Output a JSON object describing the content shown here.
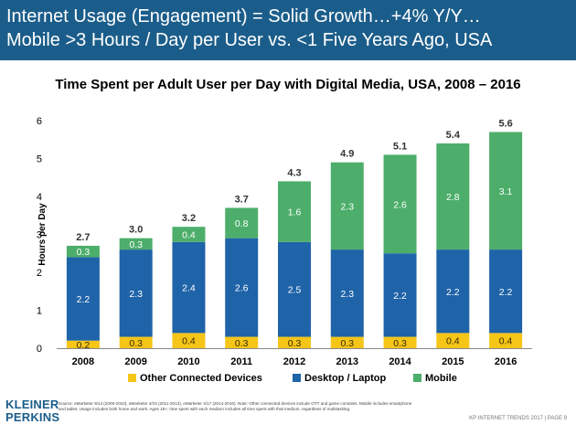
{
  "header": {
    "line1": "Internet Usage (Engagement) = Solid Growth…+4% Y/Y…",
    "line2": "Mobile >3 Hours / Day per User vs. <1 Five Years Ago, USA"
  },
  "chart_data": {
    "type": "bar",
    "stacked": true,
    "title": "Time Spent per Adult User per Day with Digital Media, USA, 2008 – 2016",
    "xlabel": "",
    "ylabel": "Hours per Day",
    "ylim": [
      0,
      6
    ],
    "yticks": [
      0,
      1,
      2,
      3,
      4,
      5,
      6
    ],
    "grid": false,
    "legend_position": "bottom",
    "categories": [
      "2008",
      "2009",
      "2010",
      "2011",
      "2012",
      "2013",
      "2014",
      "2015",
      "2016"
    ],
    "series": [
      {
        "name": "Other Connected Devices",
        "color": "#f5c518",
        "values": [
          0.2,
          0.3,
          0.4,
          0.3,
          0.3,
          0.3,
          0.3,
          0.4,
          0.4
        ]
      },
      {
        "name": "Desktop / Laptop",
        "color": "#1f63a8",
        "values": [
          2.2,
          2.3,
          2.4,
          2.6,
          2.5,
          2.3,
          2.2,
          2.2,
          2.2
        ]
      },
      {
        "name": "Mobile",
        "color": "#4cae6a",
        "values": [
          0.3,
          0.3,
          0.4,
          0.8,
          1.6,
          2.3,
          2.6,
          2.8,
          3.1
        ]
      }
    ],
    "totals": [
      2.7,
      3.0,
      3.2,
      3.7,
      4.3,
      4.9,
      5.1,
      5.4,
      5.6
    ]
  },
  "footer": {
    "logo_line1": "KLEINER",
    "logo_line2": "PERKINS",
    "source_note": "Source: eMarketer 9/14 (2008-2010), eMarketer 4/15 (2011-2013), eMarketer 4/17 (2014-2016). Note: Other connected devices include OTT and game consoles. Mobile includes smartphone and tablet. Usage includes both home and work. Ages 18+; time spent with each medium includes all time spent with that medium, regardless of multitasking.",
    "page_label": "KP INTERNET TRENDS 2017 | PAGE 9"
  }
}
